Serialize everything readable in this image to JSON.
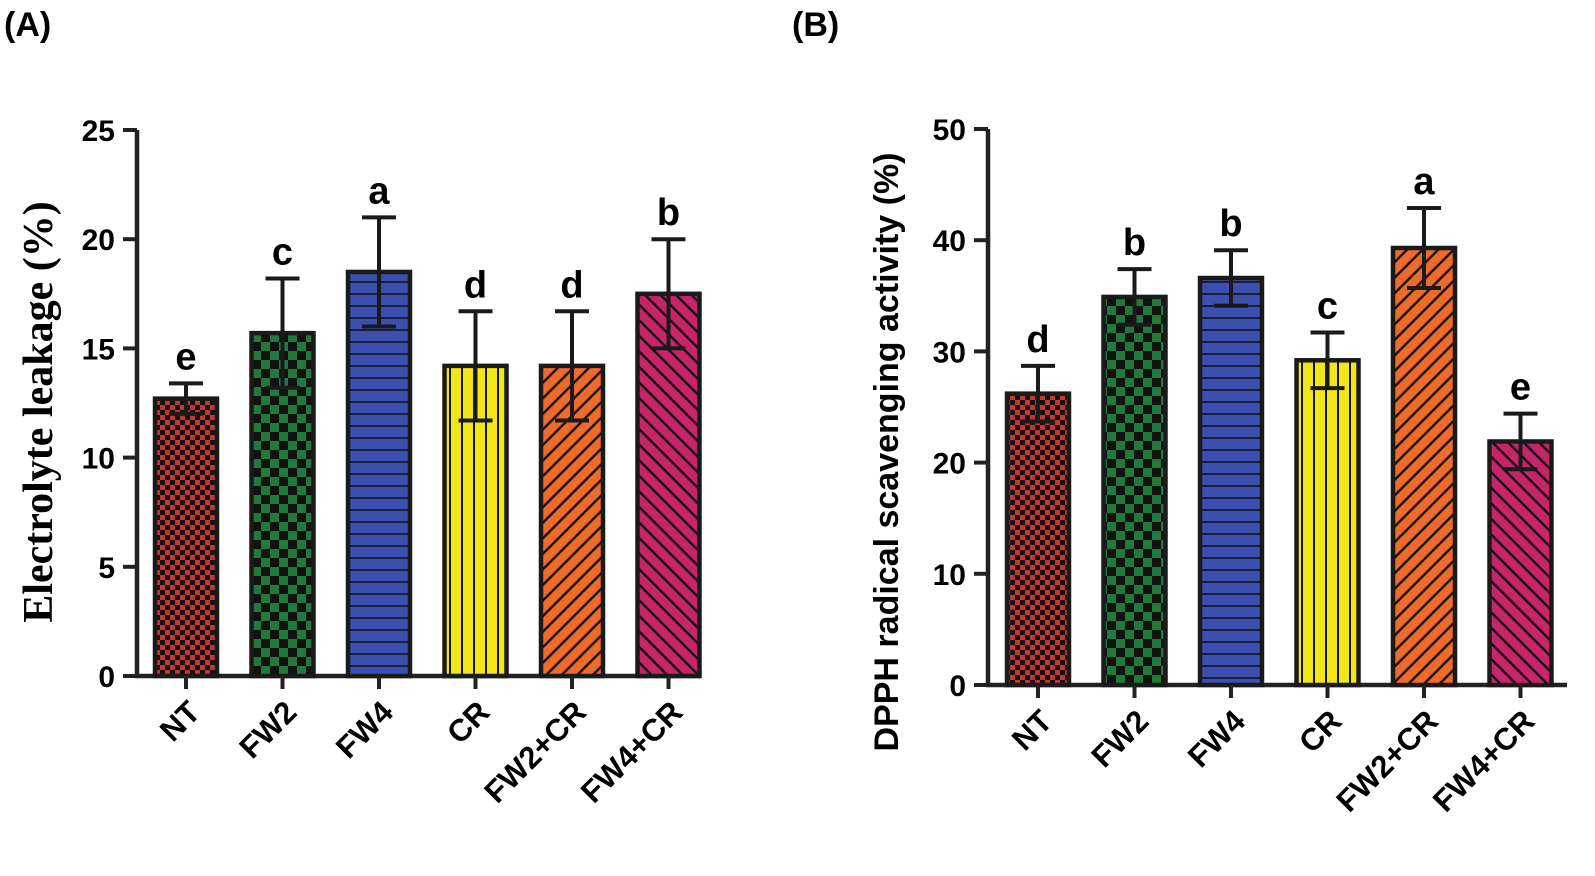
{
  "colors": {
    "NT": "#c8352c",
    "FW2": "#1f7a3c",
    "FW4": "#3a4fb0",
    "CR": "#f2e619",
    "FW2+CR": "#f06a2a",
    "FW4+CR": "#c8246a"
  },
  "chart_data": [
    {
      "panel_label": "(A)",
      "type": "bar",
      "title": "",
      "xlabel": "",
      "ylabel": "Electrolyte leakage (%)",
      "ylim": [
        0,
        25
      ],
      "yticks": [
        "0",
        "5",
        "10",
        "15",
        "20",
        "25"
      ],
      "categories": [
        "NT",
        "FW2",
        "FW4",
        "CR",
        "FW2+CR",
        "FW4+CR"
      ],
      "values": [
        12.7,
        15.7,
        18.5,
        14.2,
        14.2,
        17.5
      ],
      "errors": [
        0.7,
        2.5,
        2.5,
        2.5,
        2.5,
        2.5
      ],
      "letters": [
        "e",
        "c",
        "a",
        "d",
        "d",
        "b"
      ],
      "patterns": [
        "checker-small",
        "checker-large",
        "horizontal",
        "vertical",
        "diag-right",
        "diag-left"
      ]
    },
    {
      "panel_label": "(B)",
      "type": "bar",
      "title": "",
      "xlabel": "",
      "ylabel": "DPPH radical scavenging activity (%)",
      "ylim": [
        0,
        50
      ],
      "yticks": [
        "0",
        "10",
        "20",
        "30",
        "40",
        "50"
      ],
      "categories": [
        "NT",
        "FW2",
        "FW4",
        "CR",
        "FW2+CR",
        "FW4+CR"
      ],
      "values": [
        26.2,
        34.9,
        36.6,
        29.2,
        39.3,
        21.9
      ],
      "errors": [
        2.5,
        2.5,
        2.5,
        2.5,
        3.6,
        2.5
      ],
      "letters": [
        "d",
        "b",
        "b",
        "c",
        "a",
        "e"
      ],
      "patterns": [
        "checker-small",
        "checker-large",
        "horizontal",
        "vertical",
        "diag-right",
        "diag-left"
      ]
    }
  ]
}
